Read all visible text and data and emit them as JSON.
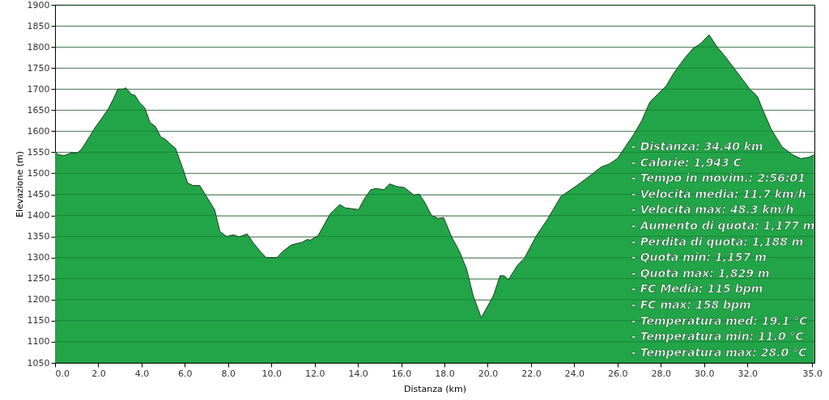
{
  "chart_data": {
    "type": "area",
    "xlabel": "Distanza   (km)",
    "ylabel": "Elevazione (m)",
    "x": [
      0,
      0.16,
      0.41,
      0.72,
      1.03,
      1.22,
      1.53,
      1.84,
      2.15,
      2.46,
      2.71,
      2.9,
      3.15,
      3.27,
      3.52,
      3.7,
      3.89,
      4.14,
      4.39,
      4.64,
      4.89,
      5.07,
      5.32,
      5.57,
      5.88,
      6.13,
      6.38,
      6.69,
      7.0,
      7.38,
      7.62,
      7.93,
      8.25,
      8.5,
      8.88,
      9.19,
      9.5,
      9.75,
      10.26,
      10.51,
      10.92,
      11.41,
      11.66,
      11.79,
      12.16,
      12.72,
      13.16,
      13.41,
      14.03,
      14.28,
      14.59,
      14.84,
      15.21,
      15.46,
      15.78,
      16.15,
      16.59,
      16.83,
      17.08,
      17.4,
      17.71,
      17.96,
      18.33,
      18.7,
      19.02,
      19.33,
      19.7,
      20.01,
      20.26,
      20.57,
      20.76,
      20.95,
      21.38,
      21.69,
      22.25,
      22.75,
      23.38,
      24.12,
      24.62,
      25.24,
      25.61,
      25.99,
      26.36,
      26.74,
      27.11,
      27.49,
      27.86,
      28.24,
      28.61,
      29.11,
      29.48,
      29.86,
      30.23,
      30.6,
      30.98,
      31.35,
      31.73,
      32.1,
      32.47,
      32.72,
      33.1,
      33.6,
      34.09,
      34.47,
      34.84,
      35.09
    ],
    "series": [
      {
        "color": "#22a548",
        "values": [
          1552,
          1544,
          1542,
          1548,
          1548,
          1557,
          1582,
          1608,
          1630,
          1653,
          1678,
          1700,
          1700,
          1703,
          1688,
          1685,
          1669,
          1656,
          1621,
          1611,
          1586,
          1582,
          1570,
          1559,
          1515,
          1477,
          1471,
          1471,
          1445,
          1413,
          1362,
          1350,
          1354,
          1349,
          1356,
          1333,
          1314,
          1300,
          1300,
          1314,
          1330,
          1336,
          1343,
          1341,
          1352,
          1404,
          1426,
          1418,
          1414,
          1438,
          1461,
          1464,
          1461,
          1475,
          1469,
          1466,
          1448,
          1451,
          1432,
          1400,
          1393,
          1395,
          1349,
          1314,
          1273,
          1209,
          1157,
          1186,
          1209,
          1257,
          1257,
          1247,
          1282,
          1298,
          1352,
          1390,
          1445,
          1471,
          1490,
          1515,
          1522,
          1535,
          1563,
          1592,
          1624,
          1669,
          1688,
          1707,
          1739,
          1774,
          1796,
          1809,
          1829,
          1800,
          1777,
          1752,
          1726,
          1701,
          1682,
          1650,
          1605,
          1563,
          1544,
          1535,
          1538,
          1544
        ]
      }
    ],
    "xlim": [
      0,
      35.1
    ],
    "xticks": [
      {
        "value": 0,
        "label": "0.0"
      },
      {
        "value": 2,
        "label": "2.0"
      },
      {
        "value": 4,
        "label": "4.0"
      },
      {
        "value": 6,
        "label": "6.0"
      },
      {
        "value": 8,
        "label": "8.0"
      },
      {
        "value": 10,
        "label": "10.0"
      },
      {
        "value": 12,
        "label": "12.0"
      },
      {
        "value": 14,
        "label": "14.0"
      },
      {
        "value": 16,
        "label": "16.0"
      },
      {
        "value": 18,
        "label": "18.0"
      },
      {
        "value": 20,
        "label": "20.0"
      },
      {
        "value": 22,
        "label": "22.0"
      },
      {
        "value": 24,
        "label": "24.0"
      },
      {
        "value": 26,
        "label": "26.0"
      },
      {
        "value": 28,
        "label": "28.0"
      },
      {
        "value": 30,
        "label": "30.0"
      },
      {
        "value": 32,
        "label": "32.0"
      },
      {
        "value": 35,
        "label": "35.0"
      }
    ],
    "ylim": [
      1050,
      1900
    ],
    "yticks": [
      1050,
      1100,
      1150,
      1200,
      1250,
      1300,
      1350,
      1400,
      1450,
      1500,
      1550,
      1600,
      1650,
      1700,
      1750,
      1800,
      1850,
      1900
    ],
    "grid": "y",
    "legend": false,
    "annotations": [
      "- Distanza: 34.40 km",
      "- Calorie: 1,943 C",
      "- Tempo in movim.: 2:56:01",
      "- Velocità media: 11.7 km/h",
      "- Velocità max: 48.3 km/h",
      "- Aumento di quota: 1,177 m",
      "- Perdita di quota: 1,188 m",
      "- Quota min: 1,157 m",
      "- Quota max: 1,829 m",
      "- FC Media: 115 bpm",
      "- FC max: 158 bpm",
      "- Temperatura med: 19.1 °C",
      "- Temperatura min: 11.0 °C",
      "- Temperatura max: 28.0 °C"
    ]
  }
}
